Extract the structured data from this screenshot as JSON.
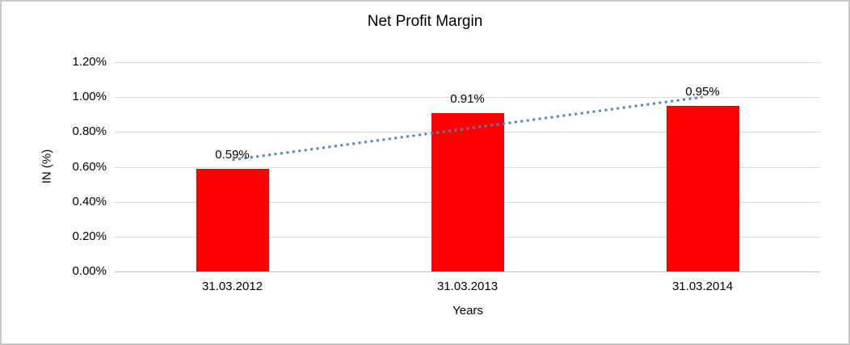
{
  "chart_data": {
    "type": "bar",
    "title": "Net Profit Margin",
    "xlabel": "Years",
    "ylabel": "IN (%)",
    "categories": [
      "31.03.2012",
      "31.03.2013",
      "31.03.2014"
    ],
    "values": [
      0.59,
      0.91,
      0.95
    ],
    "data_labels": [
      "0.59%",
      "0.91%",
      "0.95%"
    ],
    "yticks": [
      {
        "value": 0.0,
        "label": "0.00%"
      },
      {
        "value": 0.2,
        "label": "0.20%"
      },
      {
        "value": 0.4,
        "label": "0.40%"
      },
      {
        "value": 0.6,
        "label": "0.60%"
      },
      {
        "value": 0.8,
        "label": "0.80%"
      },
      {
        "value": 1.0,
        "label": "1.00%"
      },
      {
        "value": 1.2,
        "label": "1.20%"
      }
    ],
    "ylim": [
      0,
      1.2
    ],
    "grid": true,
    "legend_position": "none",
    "trendline": {
      "type": "linear",
      "style": "dotted",
      "start_value": 0.64,
      "end_value": 1.0
    },
    "colors": {
      "bar": "#ff0000",
      "trendline": "#4e84c4",
      "gridline": "#d9d9d9",
      "axis_line": "#bfbfbf",
      "text": "#000000",
      "frame_border": "#c8c8c8",
      "background": "#ffffff"
    }
  }
}
